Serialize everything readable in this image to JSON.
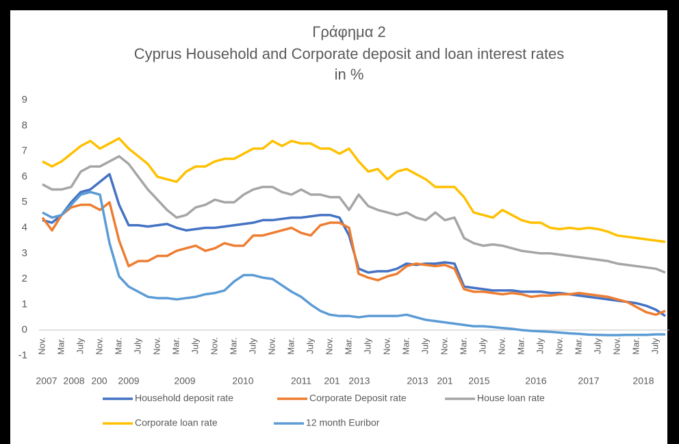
{
  "chart_data": {
    "type": "line",
    "title": "Γράφημα 2",
    "subtitle": "Cyprus Household and Corporate deposit and loan interest rates",
    "unit_label": "in %",
    "categories": [
      "Nov.",
      null,
      "Mar.",
      null,
      "July",
      null,
      "Nov.",
      null,
      "Mar.",
      null,
      "July",
      null,
      "Nov.",
      null,
      "Mar.",
      null,
      "July",
      null,
      "Nov.",
      null,
      "Mar.",
      null,
      "July",
      null,
      "Nov.",
      null,
      "Mar.",
      null,
      "July",
      null,
      "Nov.",
      null,
      "Mar.",
      null,
      "July",
      null,
      "Nov.",
      null,
      "Mar.",
      null,
      "July",
      null,
      "Nov.",
      null,
      "Mar.",
      null,
      "July",
      null,
      "Nov.",
      null,
      "Mar.",
      null,
      "July",
      null,
      "Nov.",
      null,
      "Mar.",
      null,
      "July",
      null,
      "Nov.",
      null,
      "Mar.",
      null,
      "July",
      null
    ],
    "year_labels": [
      "2007",
      "2008",
      "200",
      "2009",
      "2009",
      "2010",
      "2011",
      "201",
      "2013",
      "2013",
      "201",
      "2015",
      "2016",
      "2017",
      "2018"
    ],
    "series": [
      {
        "name": "Household deposit rate",
        "color": "#4472c4",
        "values": [
          4.3,
          4.2,
          4.5,
          5.0,
          5.4,
          5.5,
          5.8,
          6.1,
          4.9,
          4.1,
          4.1,
          4.05,
          4.1,
          4.15,
          4.0,
          3.9,
          3.95,
          4.0,
          4.0,
          4.05,
          4.1,
          4.15,
          4.2,
          4.3,
          4.3,
          4.35,
          4.4,
          4.4,
          4.45,
          4.5,
          4.5,
          4.4,
          3.7,
          2.4,
          2.25,
          2.3,
          2.3,
          2.4,
          2.6,
          2.55,
          2.6,
          2.6,
          2.65,
          2.6,
          1.7,
          1.65,
          1.6,
          1.55,
          1.55,
          1.55,
          1.5,
          1.5,
          1.5,
          1.45,
          1.45,
          1.4,
          1.35,
          1.3,
          1.25,
          1.2,
          1.15,
          1.1,
          1.05,
          0.95,
          0.8,
          0.55
        ]
      },
      {
        "name": "Corporate Deposit rate",
        "color": "#ed7d31",
        "values": [
          4.4,
          3.9,
          4.5,
          4.8,
          4.9,
          4.9,
          4.7,
          5.0,
          3.5,
          2.5,
          2.7,
          2.7,
          2.9,
          2.9,
          3.1,
          3.2,
          3.3,
          3.1,
          3.2,
          3.4,
          3.3,
          3.3,
          3.7,
          3.7,
          3.8,
          3.9,
          4.0,
          3.8,
          3.7,
          4.1,
          4.2,
          4.2,
          4.0,
          2.2,
          2.05,
          1.95,
          2.1,
          2.2,
          2.5,
          2.6,
          2.55,
          2.5,
          2.55,
          2.4,
          1.6,
          1.5,
          1.5,
          1.45,
          1.4,
          1.45,
          1.4,
          1.3,
          1.35,
          1.35,
          1.4,
          1.4,
          1.45,
          1.4,
          1.35,
          1.3,
          1.2,
          1.1,
          0.9,
          0.7,
          0.6,
          0.75
        ]
      },
      {
        "name": "House loan rate",
        "color": "#a5a5a5",
        "values": [
          5.7,
          5.5,
          5.5,
          5.6,
          6.2,
          6.4,
          6.4,
          6.6,
          6.8,
          6.5,
          6.0,
          5.5,
          5.1,
          4.7,
          4.4,
          4.5,
          4.8,
          4.9,
          5.1,
          5.0,
          5.0,
          5.3,
          5.5,
          5.6,
          5.6,
          5.4,
          5.3,
          5.5,
          5.3,
          5.3,
          5.2,
          5.2,
          4.7,
          5.3,
          4.85,
          4.7,
          4.6,
          4.5,
          4.6,
          4.4,
          4.3,
          4.6,
          4.3,
          4.4,
          3.6,
          3.4,
          3.3,
          3.35,
          3.3,
          3.2,
          3.1,
          3.05,
          3.0,
          3.0,
          2.95,
          2.9,
          2.85,
          2.8,
          2.75,
          2.7,
          2.6,
          2.55,
          2.5,
          2.45,
          2.4,
          2.25
        ]
      },
      {
        "name": "Corporate loan rate",
        "color": "#ffc000",
        "values": [
          6.6,
          6.4,
          6.6,
          6.9,
          7.2,
          7.4,
          7.1,
          7.3,
          7.5,
          7.1,
          6.8,
          6.5,
          6.0,
          5.9,
          5.8,
          6.2,
          6.4,
          6.4,
          6.6,
          6.7,
          6.7,
          6.9,
          7.1,
          7.1,
          7.4,
          7.2,
          7.4,
          7.3,
          7.3,
          7.1,
          7.1,
          6.9,
          7.1,
          6.6,
          6.2,
          6.3,
          5.9,
          6.2,
          6.3,
          6.1,
          5.9,
          5.6,
          5.6,
          5.6,
          5.2,
          4.6,
          4.5,
          4.4,
          4.7,
          4.5,
          4.3,
          4.2,
          4.2,
          4.0,
          3.95,
          4.0,
          3.95,
          4.0,
          3.95,
          3.85,
          3.7,
          3.65,
          3.6,
          3.55,
          3.5,
          3.45
        ]
      },
      {
        "name": "12 month Euribor",
        "color": "#5b9bd5",
        "values": [
          4.6,
          4.4,
          4.5,
          4.9,
          5.3,
          5.4,
          5.3,
          3.4,
          2.1,
          1.7,
          1.5,
          1.3,
          1.25,
          1.25,
          1.2,
          1.25,
          1.3,
          1.4,
          1.45,
          1.55,
          1.9,
          2.15,
          2.15,
          2.05,
          2.0,
          1.75,
          1.5,
          1.3,
          1.0,
          0.75,
          0.6,
          0.55,
          0.55,
          0.5,
          0.55,
          0.55,
          0.55,
          0.55,
          0.6,
          0.5,
          0.4,
          0.35,
          0.3,
          0.25,
          0.2,
          0.15,
          0.15,
          0.12,
          0.08,
          0.05,
          0.0,
          -0.03,
          -0.05,
          -0.07,
          -0.1,
          -0.13,
          -0.15,
          -0.18,
          -0.19,
          -0.2,
          -0.2,
          -0.19,
          -0.19,
          -0.19,
          -0.17,
          -0.17
        ]
      }
    ],
    "ylim": [
      -1,
      9
    ],
    "yticks": [
      -1,
      0,
      1,
      2,
      3,
      4,
      5,
      6,
      7,
      8,
      9
    ],
    "grid": false,
    "legend": "bottom"
  }
}
